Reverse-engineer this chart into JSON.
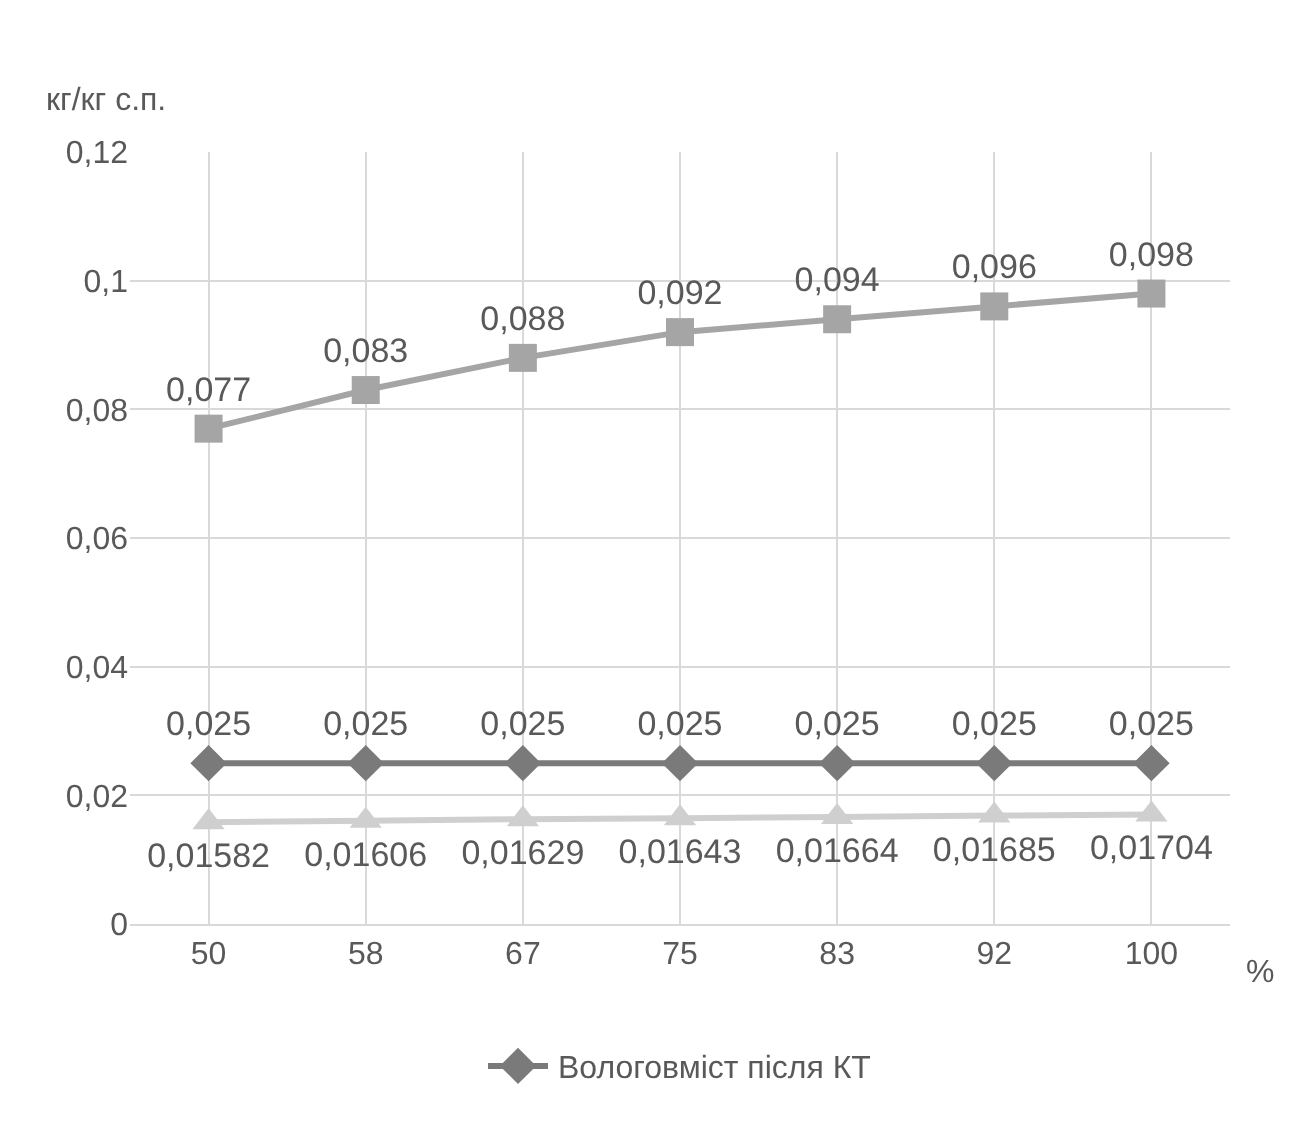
{
  "chart_data": {
    "type": "line",
    "ylabel": "кг/кг с.п.",
    "xlabel": "%",
    "categories": [
      "50",
      "58",
      "67",
      "75",
      "83",
      "92",
      "100"
    ],
    "series": [
      {
        "color": "#a5a5a5",
        "marker": "square",
        "values": [
          0.077,
          0.083,
          0.088,
          0.092,
          0.094,
          0.096,
          0.098
        ],
        "value_labels": [
          "0,077",
          "0,083",
          "0,088",
          "0,092",
          "0,094",
          "0,096",
          "0,098"
        ]
      },
      {
        "name": "Вологовміст після КТ",
        "color": "#7a7a7a",
        "marker": "diamond",
        "values": [
          0.025,
          0.025,
          0.025,
          0.025,
          0.025,
          0.025,
          0.025
        ],
        "value_labels": [
          "0,025",
          "0,025",
          "0,025",
          "0,025",
          "0,025",
          "0,025",
          "0,025"
        ]
      },
      {
        "color": "#cfcfcf",
        "marker": "triangle",
        "values": [
          0.01582,
          0.01606,
          0.01629,
          0.01643,
          0.01664,
          0.01685,
          0.01704
        ],
        "value_labels": [
          "0,01582",
          "0,01606",
          "0,01629",
          "0,01643",
          "0,01664",
          "0,01685",
          "0,01704"
        ]
      }
    ],
    "ylim": [
      0,
      0.12
    ],
    "yticks": [
      0,
      {
        "value": 0.02,
        "label": "0,02"
      },
      {
        "value": 0.04,
        "label": "0,04"
      },
      {
        "value": 0.06,
        "label": "0,06"
      },
      {
        "value": 0.08,
        "label": "0,08"
      },
      {
        "value": 0.1,
        "label": "0,1"
      },
      {
        "value": 0.12,
        "label": "0,12"
      }
    ],
    "grid": true,
    "legend": "bottom"
  }
}
